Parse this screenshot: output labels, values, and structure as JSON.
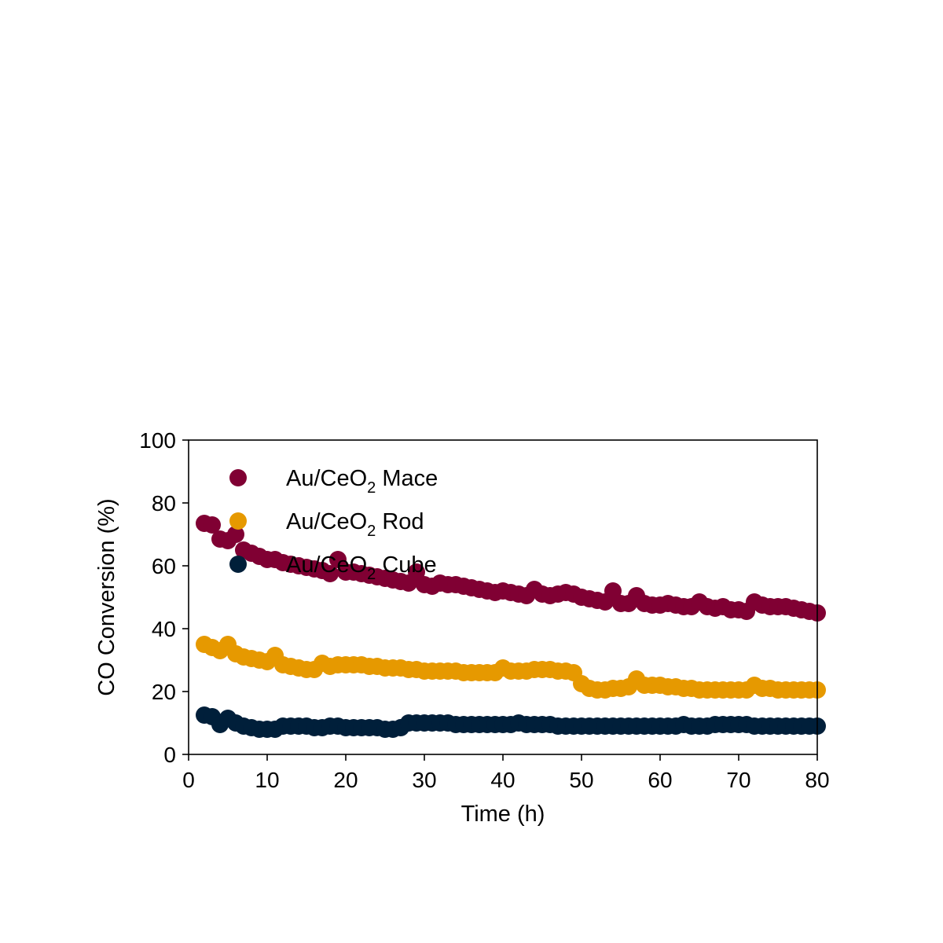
{
  "chart_data": {
    "type": "scatter",
    "title": "",
    "xlabel": "Time (h)",
    "ylabel": "CO Conversion (%)",
    "xlim": [
      0,
      80
    ],
    "ylim": [
      0,
      100
    ],
    "xticks": [
      0,
      10,
      20,
      30,
      40,
      50,
      60,
      70,
      80
    ],
    "yticks": [
      0,
      20,
      40,
      60,
      80,
      100
    ],
    "grid": false,
    "legend_position": "top-left",
    "series": [
      {
        "name": "Au/CeO₂ Mace",
        "legend": {
          "base": "Au/CeO",
          "sub": "2",
          "suffix": " Mace"
        },
        "color": "#800033",
        "x": [
          2,
          3,
          4,
          5,
          6,
          7,
          8,
          9,
          10,
          11,
          12,
          13,
          14,
          15,
          16,
          17,
          18,
          19,
          20,
          21,
          22,
          23,
          24,
          25,
          26,
          27,
          28,
          29,
          30,
          31,
          32,
          33,
          34,
          35,
          36,
          37,
          38,
          39,
          40,
          41,
          42,
          43,
          44,
          45,
          46,
          47,
          48,
          49,
          50,
          51,
          52,
          53,
          54,
          55,
          56,
          57,
          58,
          59,
          60,
          61,
          62,
          63,
          64,
          65,
          66,
          67,
          68,
          69,
          70,
          71,
          72,
          73,
          74,
          75,
          76,
          77,
          78,
          79,
          80
        ],
        "y": [
          73.5,
          73,
          68.5,
          68,
          70,
          65,
          64,
          63,
          62,
          62,
          61,
          60.5,
          60,
          59.5,
          59,
          58.5,
          57.5,
          62,
          58,
          58,
          57.5,
          57,
          56.5,
          56,
          55.5,
          55,
          54.5,
          58,
          54,
          53.5,
          54.5,
          54,
          54,
          53.5,
          53,
          52.5,
          52,
          51.5,
          52,
          51.5,
          51,
          50.5,
          52.5,
          51,
          50.5,
          51,
          51.5,
          51,
          50,
          49.5,
          49,
          48.5,
          52,
          48,
          48,
          50.5,
          48,
          47.5,
          47.5,
          48,
          47.5,
          47,
          47,
          48.5,
          47,
          46.5,
          47,
          46,
          46,
          45.5,
          48.5,
          47.5,
          47,
          47,
          47,
          46.5,
          46,
          45.5,
          45
        ]
      },
      {
        "name": "Au/CeO₂ Rod",
        "legend": {
          "base": "Au/CeO",
          "sub": "2",
          "suffix": " Rod"
        },
        "color": "#e69900",
        "x": [
          2,
          3,
          4,
          5,
          6,
          7,
          8,
          9,
          10,
          11,
          12,
          13,
          14,
          15,
          16,
          17,
          18,
          19,
          20,
          21,
          22,
          23,
          24,
          25,
          26,
          27,
          28,
          29,
          30,
          31,
          32,
          33,
          34,
          35,
          36,
          37,
          38,
          39,
          40,
          41,
          42,
          43,
          44,
          45,
          46,
          47,
          48,
          49,
          50,
          51,
          52,
          53,
          54,
          55,
          56,
          57,
          58,
          59,
          60,
          61,
          62,
          63,
          64,
          65,
          66,
          67,
          68,
          69,
          70,
          71,
          72,
          73,
          74,
          75,
          76,
          77,
          78,
          79,
          80
        ],
        "y": [
          35,
          34,
          33,
          35,
          32,
          31,
          30.5,
          30,
          29.5,
          31.5,
          28.5,
          28,
          27.5,
          27,
          27,
          29,
          28,
          28.5,
          28.5,
          28.5,
          28.5,
          28,
          28,
          27.5,
          27.5,
          27.5,
          27,
          27,
          26.5,
          26.5,
          26.5,
          26.5,
          26.5,
          26,
          26,
          26,
          26,
          26,
          27.5,
          26.5,
          26.5,
          26.5,
          27,
          27,
          27,
          26.5,
          26.5,
          26,
          22.5,
          21,
          20.5,
          20.5,
          21,
          21,
          21.5,
          24,
          22,
          22,
          22,
          21.5,
          21.5,
          21,
          21,
          20.5,
          20.5,
          20.5,
          20.5,
          20.5,
          20.5,
          20.5,
          22,
          21,
          21,
          20.5,
          20.5,
          20.5,
          20.5,
          20.5,
          20.5
        ]
      },
      {
        "name": "Au/CeO₂ Cube",
        "legend": {
          "base": "Au/CeO",
          "sub": "2",
          "suffix": " Cube"
        },
        "color": "#001f3a",
        "x": [
          2,
          3,
          4,
          5,
          6,
          7,
          8,
          9,
          10,
          11,
          12,
          13,
          14,
          15,
          16,
          17,
          18,
          19,
          20,
          21,
          22,
          23,
          24,
          25,
          26,
          27,
          28,
          29,
          30,
          31,
          32,
          33,
          34,
          35,
          36,
          37,
          38,
          39,
          40,
          41,
          42,
          43,
          44,
          45,
          46,
          47,
          48,
          49,
          50,
          51,
          52,
          53,
          54,
          55,
          56,
          57,
          58,
          59,
          60,
          61,
          62,
          63,
          64,
          65,
          66,
          67,
          68,
          69,
          70,
          71,
          72,
          73,
          74,
          75,
          76,
          77,
          78,
          79,
          80
        ],
        "y": [
          12.5,
          12,
          9.5,
          11.5,
          10,
          9,
          8.5,
          8,
          8,
          8,
          9,
          9,
          9,
          9,
          8.5,
          8.5,
          9,
          9,
          8.5,
          8.5,
          8.5,
          8.5,
          8.5,
          8,
          8,
          8.5,
          10,
          10,
          10,
          10,
          10,
          10,
          9.5,
          9.5,
          9.5,
          9.5,
          9.5,
          9.5,
          9.5,
          9.5,
          10,
          9.5,
          9.5,
          9.5,
          9.5,
          9,
          9,
          9,
          9,
          9,
          9,
          9,
          9,
          9,
          9,
          9,
          9,
          9,
          9,
          9,
          9,
          9.5,
          9,
          9,
          9,
          9.5,
          9.5,
          9.5,
          9.5,
          9.5,
          9,
          9,
          9,
          9,
          9,
          9,
          9,
          9,
          9
        ]
      }
    ]
  }
}
